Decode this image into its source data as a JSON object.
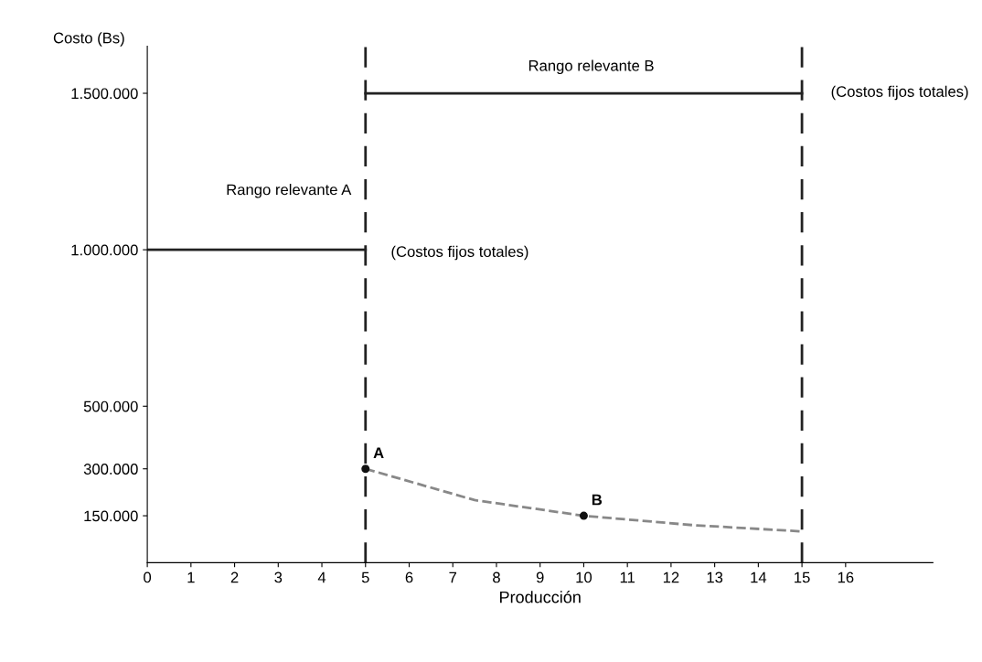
{
  "chart_data": {
    "type": "line",
    "xlabel": "Producción",
    "ylabel": "Costo (Bs)",
    "xlim": [
      0,
      18
    ],
    "xticks": [
      0,
      1,
      2,
      3,
      4,
      5,
      6,
      7,
      8,
      9,
      10,
      11,
      12,
      13,
      14,
      15,
      16
    ],
    "ylim": [
      0,
      1650000
    ],
    "yticks": [
      {
        "value": 150000,
        "label": "150.000"
      },
      {
        "value": 300000,
        "label": "300.000"
      },
      {
        "value": 500000,
        "label": "500.000"
      },
      {
        "value": 1000000,
        "label": "1.000.000"
      },
      {
        "value": 1500000,
        "label": "1.500.000"
      }
    ],
    "series": [
      {
        "color": "#222222",
        "line_style": "solid",
        "x": [
          0,
          5
        ],
        "values": [
          1000000,
          1000000
        ]
      },
      {
        "color": "#222222",
        "line_style": "solid",
        "x": [
          5,
          15
        ],
        "values": [
          1500000,
          1500000
        ]
      },
      {
        "color": "#888888",
        "line_style": "dashed",
        "x": [
          5,
          7.5,
          10,
          12.5,
          15
        ],
        "values": [
          300000,
          200000,
          150000,
          120000,
          100000
        ]
      },
      {
        "type": "scatter",
        "color": "#111111",
        "marker": "circle",
        "x": [
          5,
          10
        ],
        "values": [
          300000,
          150000
        ]
      }
    ],
    "ref_lines": [
      {
        "axis": "x",
        "value": 5,
        "color": "#222222",
        "line_style": "dashed"
      },
      {
        "axis": "x",
        "value": 15,
        "color": "#222222",
        "line_style": "dashed"
      }
    ],
    "annotations": [
      "Rango relevante A",
      "Rango relevante B",
      "(Costos fijos totales)",
      "(Costos fijos totales)",
      {
        "text": "A",
        "x": 5,
        "y": 300000
      },
      {
        "text": "B",
        "x": 10,
        "y": 150000
      }
    ],
    "grid": false,
    "legend": false
  }
}
